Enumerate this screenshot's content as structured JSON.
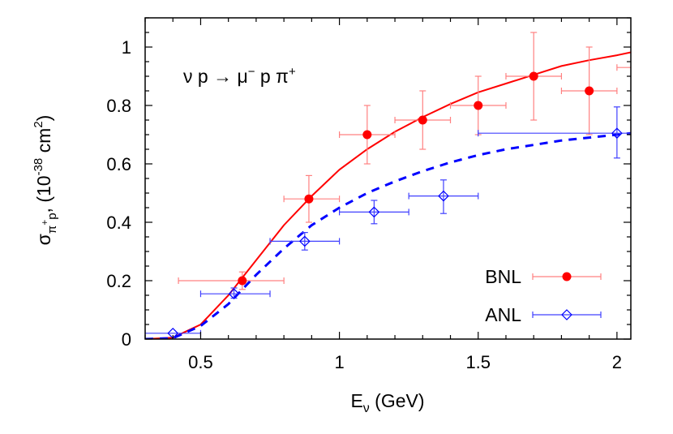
{
  "chart_data": {
    "type": "scatter",
    "title": "",
    "annotation": {
      "main": "ν p →  μ",
      "sup1": "−",
      "mid": " p π",
      "sup2": "+"
    },
    "xlabel": {
      "main": "E",
      "sub": "ν",
      "rest": " (GeV)"
    },
    "ylabel": {
      "main": "σ",
      "sub": "π",
      "subsup": "+",
      "sub2": "p",
      "rest": ",  (10",
      "exp": "-38",
      "unit": " cm",
      "unitexp": "2",
      "close": ")"
    },
    "xlim": [
      0.3,
      2.05
    ],
    "ylim": [
      0,
      1.1
    ],
    "xticks": [
      0.5,
      1,
      1.5,
      2
    ],
    "xtick_labels": [
      "0.5",
      "1",
      "1.5",
      "2"
    ],
    "yticks": [
      0,
      0.2,
      0.4,
      0.6,
      0.8,
      1
    ],
    "ytick_labels": [
      "0",
      "0.2",
      "0.4",
      "0.6",
      "0.8",
      "1"
    ],
    "grid": false,
    "legend_position": "bottom-right",
    "series": [
      {
        "name": "BNL",
        "kind": "points-errorbars",
        "marker": "filled-circle",
        "color": "#ff0000",
        "errcolor": "#ff8080",
        "points": [
          {
            "x": 0.65,
            "y": 0.2,
            "xlo": 0.42,
            "xhi": 0.8,
            "ylo": 0.17,
            "yhi": 0.23
          },
          {
            "x": 0.89,
            "y": 0.48,
            "xlo": 0.8,
            "xhi": 1.0,
            "ylo": 0.4,
            "yhi": 0.56
          },
          {
            "x": 1.1,
            "y": 0.7,
            "xlo": 1.0,
            "xhi": 1.2,
            "ylo": 0.6,
            "yhi": 0.8
          },
          {
            "x": 1.3,
            "y": 0.75,
            "xlo": 1.2,
            "xhi": 1.4,
            "ylo": 0.65,
            "yhi": 0.85
          },
          {
            "x": 1.5,
            "y": 0.8,
            "xlo": 1.4,
            "xhi": 1.6,
            "ylo": 0.7,
            "yhi": 0.9
          },
          {
            "x": 1.7,
            "y": 0.9,
            "xlo": 1.6,
            "xhi": 1.8,
            "ylo": 0.75,
            "yhi": 1.05
          },
          {
            "x": 1.9,
            "y": 0.85,
            "xlo": 1.8,
            "xhi": 2.0,
            "ylo": 0.7,
            "yhi": 1.0
          },
          {
            "x": 2.1,
            "y": 0.93,
            "xlo": 2.0,
            "xhi": 2.2,
            "ylo": 0.93,
            "yhi": 0.93
          }
        ]
      },
      {
        "name": "ANL",
        "kind": "points-errorbars",
        "marker": "open-diamond",
        "color": "#0000ff",
        "errcolor": "#4040ff",
        "points": [
          {
            "x": 0.4,
            "y": 0.02,
            "xlo": 0.3,
            "xhi": 0.5,
            "ylo": 0.02,
            "yhi": 0.02
          },
          {
            "x": 0.62,
            "y": 0.155,
            "xlo": 0.5,
            "xhi": 0.75,
            "ylo": 0.14,
            "yhi": 0.175
          },
          {
            "x": 0.875,
            "y": 0.335,
            "xlo": 0.75,
            "xhi": 1.0,
            "ylo": 0.305,
            "yhi": 0.365
          },
          {
            "x": 1.125,
            "y": 0.435,
            "xlo": 1.0,
            "xhi": 1.25,
            "ylo": 0.395,
            "yhi": 0.475
          },
          {
            "x": 1.375,
            "y": 0.49,
            "xlo": 1.25,
            "xhi": 1.5,
            "ylo": 0.43,
            "yhi": 0.545
          },
          {
            "x": 2.0,
            "y": 0.705,
            "xlo": 1.5,
            "xhi": 2.1,
            "ylo": 0.62,
            "yhi": 0.795
          }
        ]
      },
      {
        "kind": "line",
        "style": "solid",
        "color": "#ff0000",
        "x": [
          0.3,
          0.4,
          0.5,
          0.6,
          0.7,
          0.8,
          0.9,
          1.0,
          1.1,
          1.2,
          1.3,
          1.4,
          1.5,
          1.6,
          1.7,
          1.8,
          1.9,
          2.0,
          2.05
        ],
        "y": [
          0,
          0.005,
          0.05,
          0.15,
          0.27,
          0.39,
          0.49,
          0.58,
          0.65,
          0.71,
          0.76,
          0.805,
          0.845,
          0.875,
          0.905,
          0.935,
          0.955,
          0.972,
          0.982
        ]
      },
      {
        "kind": "line",
        "style": "dashed",
        "color": "#0000ff",
        "x": [
          0.3,
          0.4,
          0.5,
          0.6,
          0.7,
          0.8,
          0.9,
          1.0,
          1.1,
          1.2,
          1.3,
          1.4,
          1.5,
          1.6,
          1.7,
          1.8,
          1.9,
          2.0,
          2.05
        ],
        "y": [
          0,
          0.003,
          0.045,
          0.12,
          0.22,
          0.31,
          0.39,
          0.45,
          0.5,
          0.54,
          0.575,
          0.605,
          0.63,
          0.65,
          0.665,
          0.68,
          0.69,
          0.7,
          0.705
        ]
      }
    ]
  }
}
